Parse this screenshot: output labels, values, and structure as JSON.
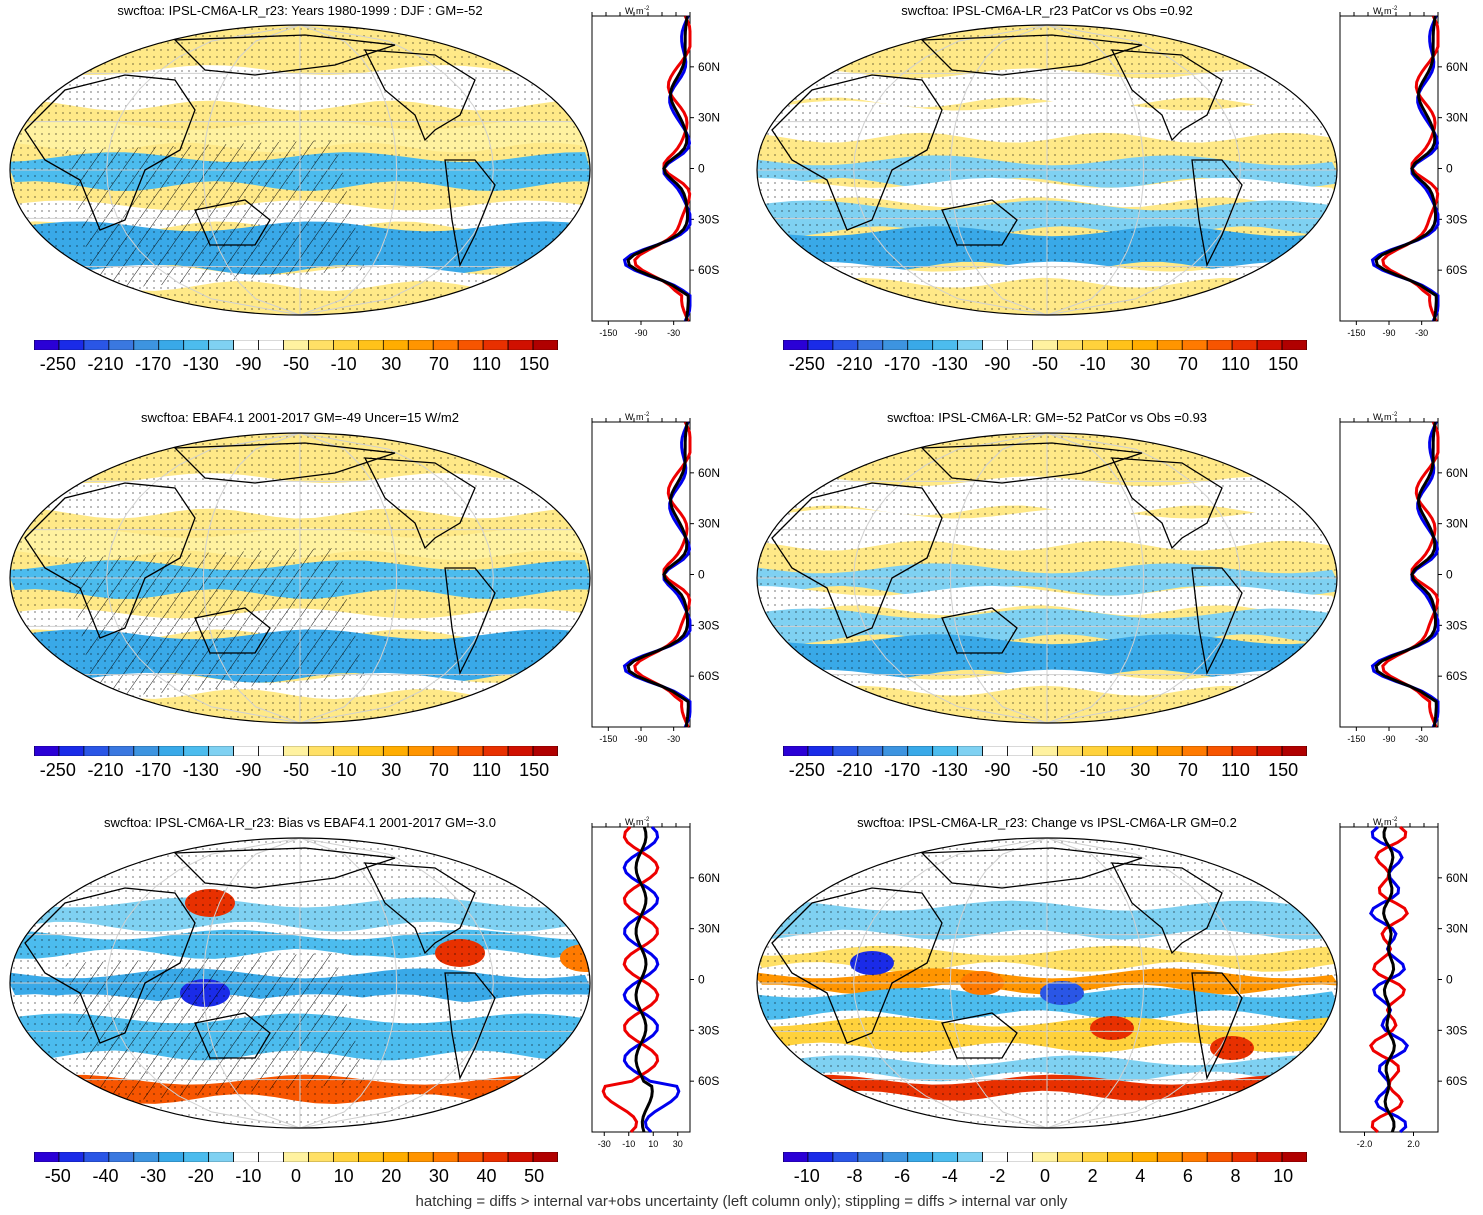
{
  "footer_note": "hatching = diffs > internal var+obs uncertainty (left column only); stippling = diffs > internal var only",
  "profile_axis": {
    "unit_label": "W m",
    "unit_superscript": "-2",
    "lat_labels": [
      "60N",
      "30N",
      "0",
      "30S",
      "60S"
    ],
    "lat_values": [
      60,
      30,
      0,
      -30,
      -60
    ],
    "series_colors": {
      "model": "#0000ee",
      "obs": "#ee0000",
      "change": "#000000"
    }
  },
  "colorbars": {
    "absolute": {
      "labels": [
        "-250",
        "-210",
        "-170",
        "-130",
        "-90",
        "-50",
        "-10",
        "30",
        "70",
        "110",
        "150"
      ],
      "colors": [
        "#2a00d6",
        "#1a2be8",
        "#2a56e6",
        "#3a78e0",
        "#3d94e0",
        "#39a9e8",
        "#4cbcee",
        "#7fd1f2",
        "#ffffff",
        "#ffffff",
        "#fff2a0",
        "#ffe066",
        "#ffd23c",
        "#ffc21a",
        "#ffad00",
        "#ff9500",
        "#ff7a00",
        "#f75500",
        "#e83000",
        "#d01000",
        "#b00000"
      ]
    },
    "bias": {
      "labels": [
        "-50",
        "-40",
        "-30",
        "-20",
        "-10",
        "0",
        "10",
        "20",
        "30",
        "40",
        "50"
      ],
      "colors": [
        "#2a00d6",
        "#1a2be8",
        "#2a56e6",
        "#3a78e0",
        "#3d94e0",
        "#39a9e8",
        "#4cbcee",
        "#7fd1f2",
        "#ffffff",
        "#ffffff",
        "#fff2a0",
        "#ffe066",
        "#ffd23c",
        "#ffc21a",
        "#ffad00",
        "#ff9500",
        "#ff7a00",
        "#f75500",
        "#e83000",
        "#d01000",
        "#b00000"
      ]
    },
    "change": {
      "labels": [
        "-10",
        "-8",
        "-6",
        "-4",
        "-2",
        "0",
        "2",
        "4",
        "6",
        "8",
        "10"
      ],
      "colors": [
        "#2a00d6",
        "#1a2be8",
        "#2a56e6",
        "#3a78e0",
        "#3d94e0",
        "#39a9e8",
        "#4cbcee",
        "#7fd1f2",
        "#ffffff",
        "#ffffff",
        "#fff2a0",
        "#ffe066",
        "#ffd23c",
        "#ffc21a",
        "#ffad00",
        "#ff9500",
        "#ff7a00",
        "#f75500",
        "#e83000",
        "#d01000",
        "#b00000"
      ]
    }
  },
  "panels": [
    {
      "title": "swcftoa: IPSL-CM6A-LR_r23: Years 1980-1999 : DJF : GM=-52",
      "colorbar": "absolute",
      "profile_x_ticks": [
        "-150",
        "-90",
        "-30"
      ],
      "hatching": true
    },
    {
      "title": "swcftoa: IPSL-CM6A-LR_r23 PatCor vs Obs =0.92",
      "colorbar": "absolute",
      "profile_x_ticks": [
        "-150",
        "-90",
        "-30"
      ],
      "hatching": false
    },
    {
      "title": "swcftoa: EBAF4.1 2001-2017 GM=-49 Uncer=15 W/m2",
      "colorbar": "absolute",
      "profile_x_ticks": [
        "-150",
        "-90",
        "-30"
      ],
      "hatching": true
    },
    {
      "title": "swcftoa: IPSL-CM6A-LR: GM=-52 PatCor vs Obs =0.93",
      "colorbar": "absolute",
      "profile_x_ticks": [
        "-150",
        "-90",
        "-30"
      ],
      "hatching": false
    },
    {
      "title": "swcftoa: IPSL-CM6A-LR_r23: Bias vs EBAF4.1 2001-2017 GM=-3.0",
      "colorbar": "bias",
      "profile_x_ticks": [
        "-30",
        "-10",
        "10",
        "30"
      ],
      "hatching": true
    },
    {
      "title": "swcftoa: IPSL-CM6A-LR_r23: Change vs IPSL-CM6A-LR GM=0.2",
      "colorbar": "change",
      "profile_x_ticks": [
        "-2.0",
        "2.0"
      ],
      "hatching": false
    }
  ]
}
